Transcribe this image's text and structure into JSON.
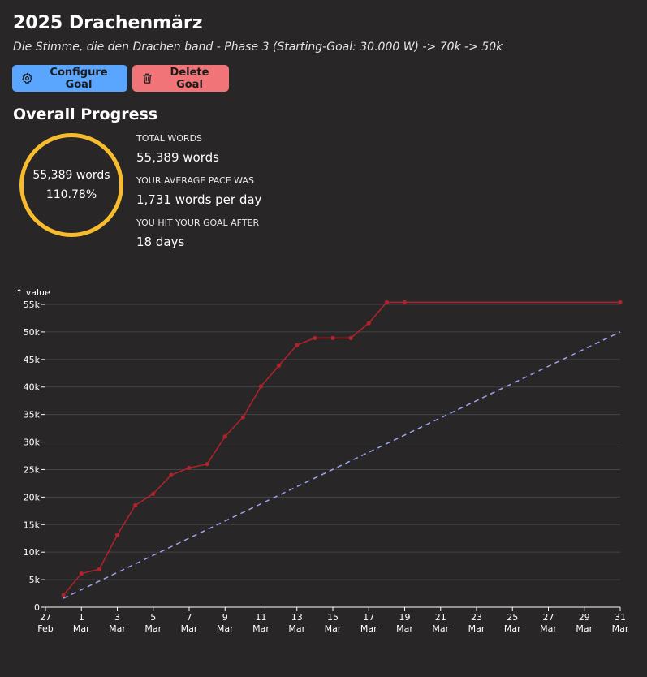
{
  "header": {
    "title": "2025 Drachenmärz",
    "subtitle": "Die Stimme, die den Drachen band - Phase 3 (Starting-Goal: 30.000 W) -> 70k -> 50k"
  },
  "toolbar": {
    "configure_label": "Configure Goal",
    "delete_label": "Delete Goal"
  },
  "progress": {
    "section_title": "Overall Progress",
    "ring_words": "55,389 words",
    "ring_percent": "110.78%",
    "ring_fraction": 1.1078,
    "total_words_label": "TOTAL WORDS",
    "total_words_value": "55,389 words",
    "pace_label": "YOUR AVERAGE PACE WAS",
    "pace_value": "1,731 words per day",
    "goal_hit_label": "YOU HIT YOUR GOAL AFTER",
    "goal_hit_value": "18 days"
  },
  "colors": {
    "background": "#282627",
    "ring": "#f7bc2d",
    "configure_button": "#5aa6ff",
    "delete_button": "#f07478",
    "actual_series": "#b3222a",
    "target_series": "#9da3ef",
    "grid": "#444444"
  },
  "chart_data": {
    "type": "line",
    "ylabel": "↑ value",
    "xlabel": "",
    "ylim": [
      0,
      55000
    ],
    "xlim": [
      "2025-02-27",
      "2025-03-31"
    ],
    "grid": "horizontal",
    "yticks": [
      {
        "v": 0,
        "label": "0"
      },
      {
        "v": 5000,
        "label": "5k"
      },
      {
        "v": 10000,
        "label": "10k"
      },
      {
        "v": 15000,
        "label": "15k"
      },
      {
        "v": 20000,
        "label": "20k"
      },
      {
        "v": 25000,
        "label": "25k"
      },
      {
        "v": 30000,
        "label": "30k"
      },
      {
        "v": 35000,
        "label": "35k"
      },
      {
        "v": 40000,
        "label": "40k"
      },
      {
        "v": 45000,
        "label": "45k"
      },
      {
        "v": 50000,
        "label": "50k"
      },
      {
        "v": 55000,
        "label": "55k"
      }
    ],
    "xticks": [
      {
        "date": "2025-02-27",
        "day": "27",
        "month": "Feb"
      },
      {
        "date": "2025-03-01",
        "day": "1",
        "month": "Mar"
      },
      {
        "date": "2025-03-03",
        "day": "3",
        "month": "Mar"
      },
      {
        "date": "2025-03-05",
        "day": "5",
        "month": "Mar"
      },
      {
        "date": "2025-03-07",
        "day": "7",
        "month": "Mar"
      },
      {
        "date": "2025-03-09",
        "day": "9",
        "month": "Mar"
      },
      {
        "date": "2025-03-11",
        "day": "11",
        "month": "Mar"
      },
      {
        "date": "2025-03-13",
        "day": "13",
        "month": "Mar"
      },
      {
        "date": "2025-03-15",
        "day": "15",
        "month": "Mar"
      },
      {
        "date": "2025-03-17",
        "day": "17",
        "month": "Mar"
      },
      {
        "date": "2025-03-19",
        "day": "19",
        "month": "Mar"
      },
      {
        "date": "2025-03-21",
        "day": "21",
        "month": "Mar"
      },
      {
        "date": "2025-03-23",
        "day": "23",
        "month": "Mar"
      },
      {
        "date": "2025-03-25",
        "day": "25",
        "month": "Mar"
      },
      {
        "date": "2025-03-27",
        "day": "27",
        "month": "Mar"
      },
      {
        "date": "2025-03-29",
        "day": "29",
        "month": "Mar"
      },
      {
        "date": "2025-03-31",
        "day": "31",
        "month": "Mar"
      }
    ],
    "series": [
      {
        "style": "solid-with-points",
        "x": [
          "2025-02-28",
          "2025-03-01",
          "2025-03-02",
          "2025-03-03",
          "2025-03-04",
          "2025-03-05",
          "2025-03-06",
          "2025-03-07",
          "2025-03-08",
          "2025-03-09",
          "2025-03-10",
          "2025-03-11",
          "2025-03-12",
          "2025-03-13",
          "2025-03-14",
          "2025-03-15",
          "2025-03-16",
          "2025-03-17",
          "2025-03-18",
          "2025-03-19",
          "2025-03-31"
        ],
        "values": [
          2200,
          6100,
          6900,
          13100,
          18500,
          20600,
          24000,
          25300,
          26000,
          31000,
          34500,
          40100,
          43900,
          47600,
          48900,
          48900,
          48900,
          51600,
          55389,
          55389,
          55389
        ]
      },
      {
        "style": "dashed",
        "x": [
          "2025-02-28",
          "2025-03-31"
        ],
        "values": [
          1613,
          50000
        ]
      }
    ]
  }
}
